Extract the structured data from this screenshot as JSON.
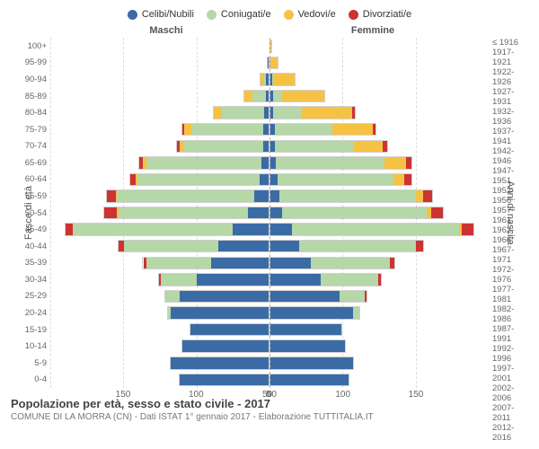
{
  "chart": {
    "type": "population-pyramid",
    "legend": [
      {
        "label": "Celibi/Nubili",
        "color": "#3b6ba5"
      },
      {
        "label": "Coniugati/e",
        "color": "#b6d7a8"
      },
      {
        "label": "Vedovi/e",
        "color": "#f6c244"
      },
      {
        "label": "Divorziati/e",
        "color": "#cc3333"
      }
    ],
    "left_header": "Maschi",
    "right_header": "Femmine",
    "y_left_label": "Fasce di età",
    "y_right_label": "Anni di nascita",
    "x_max": 150,
    "x_ticks": [
      0,
      50,
      100,
      150
    ],
    "background_color": "#ffffff",
    "grid_color": "#dddddd",
    "rows": [
      {
        "age": "100+",
        "birth": "≤ 1916",
        "m": [
          0,
          0,
          0,
          0
        ],
        "f": [
          0,
          0,
          2,
          0
        ]
      },
      {
        "age": "95-99",
        "birth": "1917-1921",
        "m": [
          1,
          0,
          1,
          0
        ],
        "f": [
          0,
          0,
          6,
          0
        ]
      },
      {
        "age": "90-94",
        "birth": "1922-1926",
        "m": [
          2,
          2,
          3,
          0
        ],
        "f": [
          1,
          1,
          16,
          0
        ]
      },
      {
        "age": "85-89",
        "birth": "1927-1931",
        "m": [
          2,
          10,
          6,
          0
        ],
        "f": [
          2,
          6,
          30,
          0
        ]
      },
      {
        "age": "80-84",
        "birth": "1932-1936",
        "m": [
          3,
          30,
          6,
          0
        ],
        "f": [
          2,
          20,
          35,
          2
        ]
      },
      {
        "age": "75-79",
        "birth": "1937-1941",
        "m": [
          4,
          50,
          5,
          1
        ],
        "f": [
          3,
          40,
          28,
          2
        ]
      },
      {
        "age": "70-74",
        "birth": "1942-1946",
        "m": [
          4,
          55,
          3,
          2
        ],
        "f": [
          3,
          55,
          20,
          3
        ]
      },
      {
        "age": "65-69",
        "birth": "1947-1951",
        "m": [
          5,
          80,
          2,
          3
        ],
        "f": [
          4,
          75,
          15,
          4
        ]
      },
      {
        "age": "60-64",
        "birth": "1952-1956",
        "m": [
          6,
          85,
          1,
          4
        ],
        "f": [
          5,
          80,
          8,
          5
        ]
      },
      {
        "age": "55-59",
        "birth": "1957-1961",
        "m": [
          10,
          95,
          1,
          6
        ],
        "f": [
          6,
          95,
          5,
          6
        ]
      },
      {
        "age": "50-54",
        "birth": "1962-1966",
        "m": [
          14,
          90,
          1,
          9
        ],
        "f": [
          8,
          100,
          3,
          8
        ]
      },
      {
        "age": "45-49",
        "birth": "1967-1971",
        "m": [
          25,
          110,
          0,
          5
        ],
        "f": [
          15,
          115,
          2,
          8
        ]
      },
      {
        "age": "40-44",
        "birth": "1972-1976",
        "m": [
          35,
          65,
          0,
          4
        ],
        "f": [
          20,
          80,
          1,
          5
        ]
      },
      {
        "age": "35-39",
        "birth": "1977-1981",
        "m": [
          40,
          45,
          0,
          2
        ],
        "f": [
          28,
          55,
          0,
          3
        ]
      },
      {
        "age": "30-34",
        "birth": "1982-1986",
        "m": [
          50,
          25,
          0,
          1
        ],
        "f": [
          35,
          40,
          0,
          2
        ]
      },
      {
        "age": "25-29",
        "birth": "1987-1991",
        "m": [
          62,
          10,
          0,
          0
        ],
        "f": [
          48,
          18,
          0,
          1
        ]
      },
      {
        "age": "20-24",
        "birth": "1992-1996",
        "m": [
          68,
          2,
          0,
          0
        ],
        "f": [
          58,
          4,
          0,
          0
        ]
      },
      {
        "age": "15-19",
        "birth": "1997-2001",
        "m": [
          55,
          0,
          0,
          0
        ],
        "f": [
          50,
          0,
          0,
          0
        ]
      },
      {
        "age": "10-14",
        "birth": "2002-2006",
        "m": [
          60,
          0,
          0,
          0
        ],
        "f": [
          52,
          0,
          0,
          0
        ]
      },
      {
        "age": "5-9",
        "birth": "2007-2011",
        "m": [
          68,
          0,
          0,
          0
        ],
        "f": [
          58,
          0,
          0,
          0
        ]
      },
      {
        "age": "0-4",
        "birth": "2012-2016",
        "m": [
          62,
          0,
          0,
          0
        ],
        "f": [
          55,
          0,
          0,
          0
        ]
      }
    ]
  },
  "footer": {
    "title": "Popolazione per età, sesso e stato civile - 2017",
    "subtitle": "COMUNE DI LA MORRA (CN) - Dati ISTAT 1° gennaio 2017 - Elaborazione TUTTITALIA.IT"
  }
}
